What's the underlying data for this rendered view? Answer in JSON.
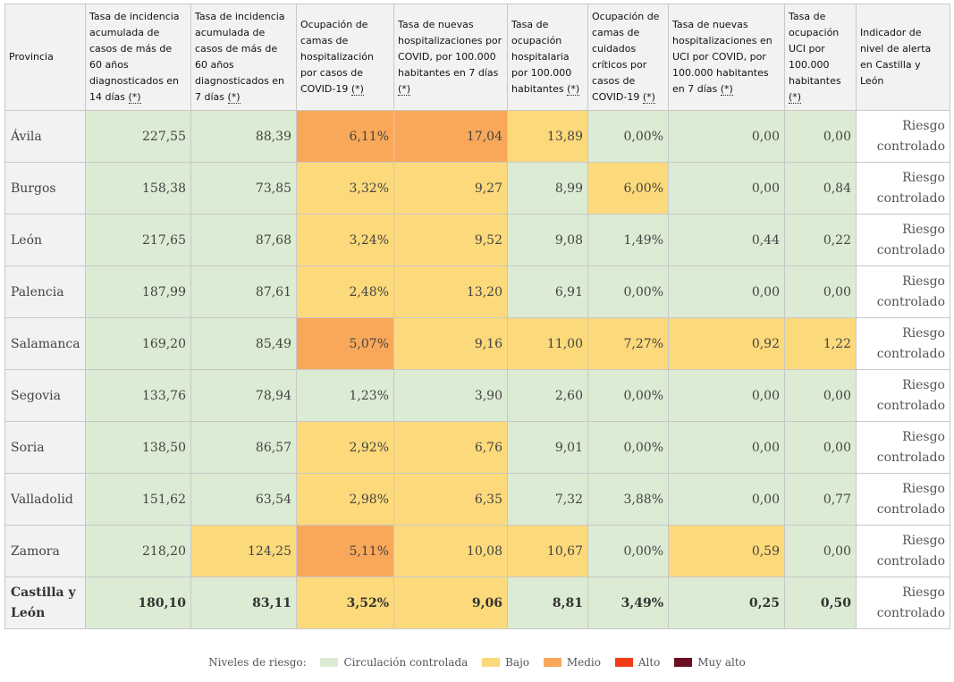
{
  "colors": {
    "circulacion": "#dcebd3",
    "bajo": "#fcd97a",
    "medio": "#f9a85a",
    "alto": "#f23c17",
    "muy_alto": "#6b0d23"
  },
  "headers": [
    "Provincia",
    "Tasa de incidencia acumulada de casos de más de 60 años diagnosticados en 14 días",
    "Tasa de incidencia acumulada de casos de más de 60 años diagnosticados en 7 días",
    "Ocupación de camas de hospitalización por casos de COVID-19",
    "Tasa de nuevas hospitalizaciones por COVID, por 100.000 habitantes en 7 días",
    "Tasa de ocupación hospitalaria por 100.000 habitantes",
    "Ocupación de camas de cuidados críticos por casos de COVID-19",
    "Tasa de nuevas hospitalizaciones en UCI por COVID, por 100.000 habitantes en 7 días",
    "Tasa de ocupación UCI por 100.000 habitantes",
    "Indicador de nivel de alerta en Castilla y León"
  ],
  "asterisk": "(*)",
  "alert_line1": "Riesgo",
  "alert_line2": "controlado",
  "rows": [
    {
      "name": "Ávila",
      "values": [
        "227,55",
        "88,39",
        "6,11%",
        "17,04",
        "13,89",
        "0,00%",
        "0,00",
        "0,00"
      ]
    },
    {
      "name": "Burgos",
      "values": [
        "158,38",
        "73,85",
        "3,32%",
        "9,27",
        "8,99",
        "6,00%",
        "0,00",
        "0,84"
      ]
    },
    {
      "name": "León",
      "values": [
        "217,65",
        "87,68",
        "3,24%",
        "9,52",
        "9,08",
        "1,49%",
        "0,44",
        "0,22"
      ]
    },
    {
      "name": "Palencia",
      "values": [
        "187,99",
        "87,61",
        "2,48%",
        "13,20",
        "6,91",
        "0,00%",
        "0,00",
        "0,00"
      ]
    },
    {
      "name": "Salamanca",
      "values": [
        "169,20",
        "85,49",
        "5,07%",
        "9,16",
        "11,00",
        "7,27%",
        "0,92",
        "1,22"
      ]
    },
    {
      "name": "Segovia",
      "values": [
        "133,76",
        "78,94",
        "1,23%",
        "3,90",
        "2,60",
        "0,00%",
        "0,00",
        "0,00"
      ]
    },
    {
      "name": "Soria",
      "values": [
        "138,50",
        "86,57",
        "2,92%",
        "6,76",
        "9,01",
        "0,00%",
        "0,00",
        "0,00"
      ]
    },
    {
      "name": "Valladolid",
      "values": [
        "151,62",
        "63,54",
        "2,98%",
        "6,35",
        "7,32",
        "3,88%",
        "0,00",
        "0,77"
      ]
    },
    {
      "name": "Zamora",
      "values": [
        "218,20",
        "124,25",
        "5,11%",
        "10,08",
        "10,67",
        "0,00%",
        "0,59",
        "0,00"
      ]
    }
  ],
  "total": {
    "name": "Castilla y León",
    "values": [
      "180,10",
      "83,11",
      "3,52%",
      "9,06",
      "8,81",
      "3,49%",
      "0,25",
      "0,50"
    ]
  },
  "legend": {
    "title": "Niveles de riesgo:",
    "items": [
      "Circulación controlada",
      "Bajo",
      "Medio",
      "Alto",
      "Muy alto"
    ]
  }
}
